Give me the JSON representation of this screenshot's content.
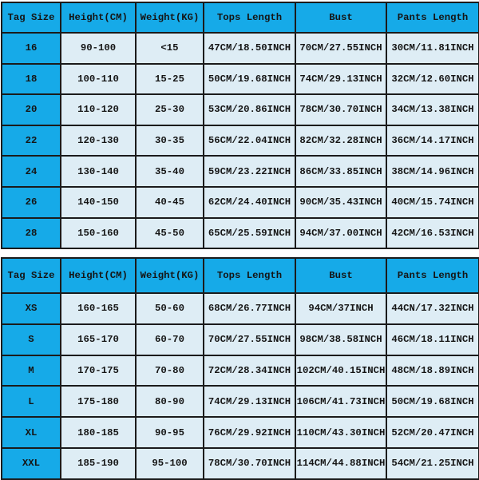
{
  "colors": {
    "header": "#16aae8",
    "cell": "#deedf5",
    "border": "#1b1b1b"
  },
  "headers": [
    "Tag Size",
    "Height(CM)",
    "Weight(KG)",
    "Tops Length",
    "Bust",
    "Pants Length"
  ],
  "kids_table": {
    "rows": [
      [
        "16",
        "90-100",
        "<15",
        "47CM/18.50INCH",
        "70CM/27.55INCH",
        "30CM/11.81INCH"
      ],
      [
        "18",
        "100-110",
        "15-25",
        "50CM/19.68INCH",
        "74CM/29.13INCH",
        "32CM/12.60INCH"
      ],
      [
        "20",
        "110-120",
        "25-30",
        "53CM/20.86INCH",
        "78CM/30.70INCH",
        "34CM/13.38INCH"
      ],
      [
        "22",
        "120-130",
        "30-35",
        "56CM/22.04INCH",
        "82CM/32.28INCH",
        "36CM/14.17INCH"
      ],
      [
        "24",
        "130-140",
        "35-40",
        "59CM/23.22INCH",
        "86CM/33.85INCH",
        "38CM/14.96INCH"
      ],
      [
        "26",
        "140-150",
        "40-45",
        "62CM/24.40INCH",
        "90CM/35.43INCH",
        "40CM/15.74INCH"
      ],
      [
        "28",
        "150-160",
        "45-50",
        "65CM/25.59INCH",
        "94CM/37.00INCH",
        "42CM/16.53INCH"
      ]
    ]
  },
  "adult_table": {
    "rows": [
      [
        "XS",
        "160-165",
        "50-60",
        "68CM/26.77INCH",
        "94CM/37INCH",
        "44CN/17.32INCH"
      ],
      [
        "S",
        "165-170",
        "60-70",
        "70CM/27.55INCH",
        "98CM/38.58INCH",
        "46CM/18.11INCH"
      ],
      [
        "M",
        "170-175",
        "70-80",
        "72CM/28.34INCH",
        "102CM/40.15INCH",
        "48CM/18.89INCH"
      ],
      [
        "L",
        "175-180",
        "80-90",
        "74CM/29.13INCH",
        "106CM/41.73INCH",
        "50CM/19.68INCH"
      ],
      [
        "XL",
        "180-185",
        "90-95",
        "76CM/29.92INCH",
        "110CM/43.30INCH",
        "52CM/20.47INCH"
      ],
      [
        "XXL",
        "185-190",
        "95-100",
        "78CM/30.70INCH",
        "114CM/44.88INCH",
        "54CM/21.25INCH"
      ]
    ]
  }
}
